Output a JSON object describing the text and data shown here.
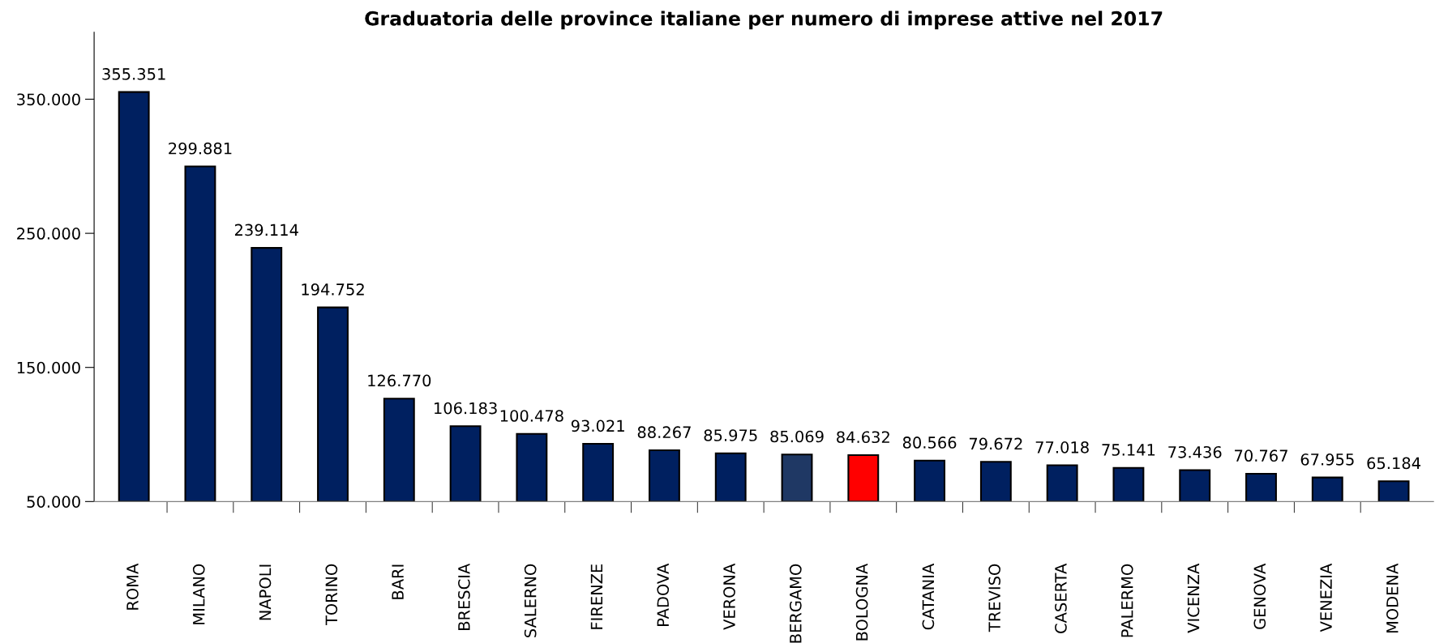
{
  "chart_data": {
    "type": "bar",
    "title": "Graduatoria delle province italiane per numero di imprese attive nel 2017",
    "categories": [
      "ROMA",
      "MILANO",
      "NAPOLI",
      "TORINO",
      "BARI",
      "BRESCIA",
      "SALERNO",
      "FIRENZE",
      "PADOVA",
      "VERONA",
      "BERGAMO",
      "BOLOGNA",
      "CATANIA",
      "TREVISO",
      "CASERTA",
      "PALERMO",
      "VICENZA",
      "GENOVA",
      "VENEZIA",
      "MODENA"
    ],
    "values": [
      355351,
      299881,
      239114,
      194752,
      126770,
      106183,
      100478,
      93021,
      88267,
      85975,
      85069,
      84632,
      80566,
      79672,
      77018,
      75141,
      73436,
      70767,
      67955,
      65184
    ],
    "colors": [
      "#002060",
      "#002060",
      "#002060",
      "#002060",
      "#002060",
      "#002060",
      "#002060",
      "#002060",
      "#002060",
      "#002060",
      "#1f3864",
      "#ff0000",
      "#002060",
      "#002060",
      "#002060",
      "#002060",
      "#002060",
      "#002060",
      "#002060",
      "#002060"
    ],
    "value_labels": [
      "355.351",
      "299.881",
      "239.114",
      "194.752",
      "126.770",
      "106.183",
      "100.478",
      "93.021",
      "88.267",
      "85.975",
      "85.069",
      "84.632",
      "80.566",
      "79.672",
      "77.018",
      "75.141",
      "73.436",
      "70.767",
      "67.955",
      "65.184"
    ],
    "ylim": [
      50000,
      400000
    ],
    "yticks": [
      {
        "value": 50000,
        "label": "50.000"
      },
      {
        "value": 150000,
        "label": "150.000"
      },
      {
        "value": 250000,
        "label": "250.000"
      },
      {
        "value": 350000,
        "label": "350.000"
      }
    ],
    "grid": false,
    "legend": false
  }
}
